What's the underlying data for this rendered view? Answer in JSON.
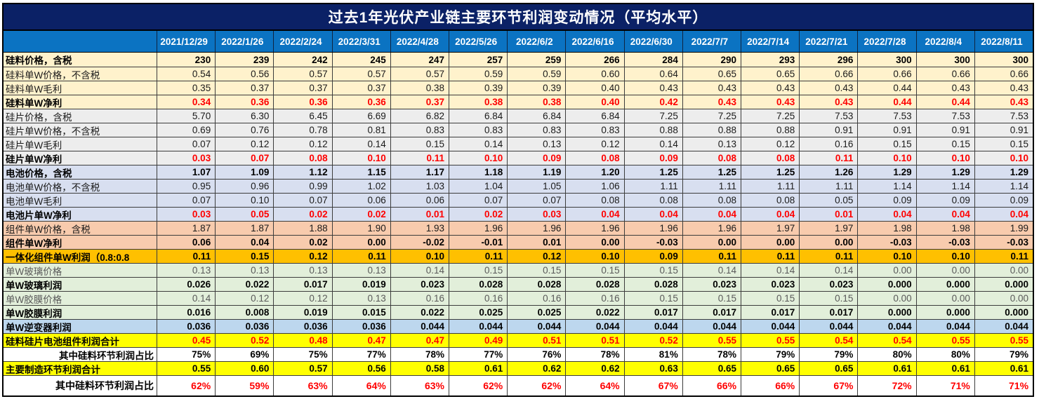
{
  "title": "过去1年光伏产业链主要环节利润变动情况（平均水平）",
  "palette": {
    "navy_titlebar": "#0B2166",
    "blue_header": "#0B73C2",
    "red_text": "#FF0000",
    "cream": "#FFF2CC",
    "wafer_gray": "#EDEDED",
    "battery_periwinkle": "#D8DFF0",
    "module_salmon": "#F8CBAD",
    "integrated_gold": "#FFC000",
    "glass_green": "#E2EFDA",
    "inverter_blue": "#BDD7EE",
    "total_yellow": "#FFFF00",
    "white": "#FFFFFF"
  },
  "chart_data": {
    "type": "table",
    "title": "过去1年光伏产业链主要环节利润变动情况（平均水平）",
    "columns": [
      "",
      "2021/12/29",
      "2022/1/26",
      "2022/2/24",
      "2022/3/31",
      "2022/4/28",
      "2022/5/26",
      "2022/6/2",
      "2022/6/16",
      "2022/6/30",
      "2022/7/7",
      "2022/7/14",
      "2022/7/21",
      "2022/7/28",
      "2022/8/4",
      "2022/8/11"
    ],
    "rows": [
      {
        "label": "硅料价格，含税",
        "bg": "cream",
        "label_style": "bold",
        "value_style": "bold",
        "values": [
          "230",
          "239",
          "242",
          "245",
          "247",
          "257",
          "259",
          "266",
          "284",
          "290",
          "293",
          "296",
          "300",
          "300",
          "300"
        ]
      },
      {
        "label": "硅料单W价格，不含税",
        "bg": "cream",
        "label_style": "normal",
        "value_style": "normal",
        "values": [
          "0.54",
          "0.56",
          "0.57",
          "0.57",
          "0.57",
          "0.59",
          "0.59",
          "0.60",
          "0.64",
          "0.65",
          "0.65",
          "0.66",
          "0.66",
          "0.66",
          "0.66"
        ]
      },
      {
        "label": "硅料单W毛利",
        "bg": "cream",
        "label_style": "normal",
        "value_style": "normal",
        "values": [
          "0.35",
          "0.37",
          "0.37",
          "0.37",
          "0.38",
          "0.39",
          "0.39",
          "0.40",
          "0.43",
          "0.43",
          "0.43",
          "0.43",
          "0.44",
          "0.43",
          "0.43"
        ]
      },
      {
        "label": "硅料单W净利",
        "bg": "cream",
        "label_style": "bold",
        "value_style": "bold-red",
        "values": [
          "0.34",
          "0.36",
          "0.36",
          "0.36",
          "0.37",
          "0.38",
          "0.38",
          "0.40",
          "0.42",
          "0.43",
          "0.43",
          "0.43",
          "0.44",
          "0.44",
          "0.43"
        ]
      },
      {
        "label": "硅片价格，含税",
        "bg": "wafer_gray",
        "label_style": "normal",
        "value_style": "normal",
        "values": [
          "5.70",
          "6.30",
          "6.45",
          "6.69",
          "6.82",
          "6.84",
          "6.84",
          "6.84",
          "7.25",
          "7.25",
          "7.25",
          "7.53",
          "7.53",
          "7.53",
          "7.53"
        ]
      },
      {
        "label": "硅片单W价格，不含税",
        "bg": "wafer_gray",
        "label_style": "normal",
        "value_style": "normal",
        "values": [
          "0.69",
          "0.76",
          "0.78",
          "0.81",
          "0.83",
          "0.83",
          "0.83",
          "0.83",
          "0.88",
          "0.88",
          "0.88",
          "0.91",
          "0.91",
          "0.91",
          "0.91"
        ]
      },
      {
        "label": "硅片单W毛利",
        "bg": "wafer_gray",
        "label_style": "normal",
        "value_style": "normal",
        "values": [
          "0.07",
          "0.12",
          "0.12",
          "0.14",
          "0.15",
          "0.14",
          "0.13",
          "0.12",
          "0.14",
          "0.13",
          "0.12",
          "0.16",
          "0.15",
          "0.15",
          "0.15"
        ]
      },
      {
        "label": "硅片单W净利",
        "bg": "wafer_gray",
        "label_style": "bold",
        "value_style": "bold-red",
        "values": [
          "0.03",
          "0.07",
          "0.08",
          "0.10",
          "0.11",
          "0.10",
          "0.09",
          "0.08",
          "0.09",
          "0.08",
          "0.08",
          "0.11",
          "0.10",
          "0.10",
          "0.10"
        ]
      },
      {
        "label": "电池价格，含税",
        "bg": "battery_periwinkle",
        "label_style": "bold",
        "value_style": "bold",
        "values": [
          "1.07",
          "1.09",
          "1.12",
          "1.15",
          "1.17",
          "1.18",
          "1.19",
          "1.20",
          "1.25",
          "1.25",
          "1.25",
          "1.26",
          "1.29",
          "1.29",
          "1.29"
        ]
      },
      {
        "label": "电池单W价格，不含税",
        "bg": "battery_periwinkle",
        "label_style": "normal",
        "value_style": "normal",
        "values": [
          "0.95",
          "0.96",
          "0.99",
          "1.02",
          "1.03",
          "1.04",
          "1.05",
          "1.06",
          "1.11",
          "1.11",
          "1.11",
          "1.11",
          "1.14",
          "1.14",
          "1.14"
        ]
      },
      {
        "label": "电池单W毛利",
        "bg": "battery_periwinkle",
        "label_style": "normal",
        "value_style": "normal",
        "values": [
          "0.07",
          "0.10",
          "0.07",
          "0.06",
          "0.06",
          "0.07",
          "0.07",
          "0.08",
          "0.08",
          "0.08",
          "0.08",
          "0.05",
          "0.09",
          "0.09",
          "0.09"
        ]
      },
      {
        "label": "电池片单W净利",
        "bg": "battery_periwinkle",
        "label_style": "bold",
        "value_style": "bold-red",
        "values": [
          "0.03",
          "0.05",
          "0.02",
          "0.02",
          "0.01",
          "0.02",
          "0.03",
          "0.04",
          "0.04",
          "0.04",
          "0.04",
          "0.01",
          "0.04",
          "0.04",
          "0.04"
        ]
      },
      {
        "label": "组件单W价格，含税",
        "bg": "module_salmon",
        "label_style": "normal",
        "value_style": "normal",
        "values": [
          "1.87",
          "1.87",
          "1.88",
          "1.90",
          "1.93",
          "1.96",
          "1.96",
          "1.96",
          "1.96",
          "1.96",
          "1.97",
          "1.97",
          "1.98",
          "1.98",
          "1.99"
        ]
      },
      {
        "label": "组件单W净利",
        "bg": "module_salmon",
        "label_style": "bold",
        "value_style": "bold",
        "values": [
          "0.06",
          "0.04",
          "0.02",
          "0.00",
          "-0.02",
          "-0.01",
          "0.01",
          "0.00",
          "-0.03",
          "0.00",
          "0.00",
          "0.00",
          "-0.03",
          "-0.03",
          "-0.03"
        ]
      },
      {
        "label": "一体化组件单W利润（0.8:0.8",
        "bg": "integrated_gold",
        "label_style": "bold",
        "value_style": "bold",
        "values": [
          "0.11",
          "0.15",
          "0.12",
          "0.11",
          "0.10",
          "0.11",
          "0.12",
          "0.10",
          "0.09",
          "0.11",
          "0.11",
          "0.11",
          "0.10",
          "0.10",
          "0.11"
        ]
      },
      {
        "label": "单W玻璃价格",
        "bg": "glass_green",
        "label_style": "gray",
        "value_style": "gray",
        "values": [
          "0.13",
          "0.13",
          "0.13",
          "0.13",
          "0.14",
          "0.15",
          "0.15",
          "0.15",
          "0.15",
          "0.14",
          "0.14",
          "0.14",
          "0.00",
          "0.00",
          "0.00"
        ]
      },
      {
        "label": "单W玻璃利润",
        "bg": "glass_green",
        "label_style": "bold",
        "value_style": "bold",
        "values": [
          "0.026",
          "0.022",
          "0.017",
          "0.019",
          "0.023",
          "0.028",
          "0.028",
          "0.028",
          "0.028",
          "0.023",
          "0.023",
          "0.023",
          "0.000",
          "0.000",
          "0.000"
        ]
      },
      {
        "label": "单W胶膜价格",
        "bg": "glass_green",
        "label_style": "gray",
        "value_style": "gray",
        "values": [
          "0.14",
          "0.12",
          "0.12",
          "0.13",
          "0.16",
          "0.16",
          "0.16",
          "0.16",
          "0.15",
          "0.15",
          "0.15",
          "0.15",
          "0.00",
          "0.00",
          "0.00"
        ]
      },
      {
        "label": "单W胶膜利润",
        "bg": "glass_green",
        "label_style": "bold",
        "value_style": "bold",
        "values": [
          "0.016",
          "0.008",
          "0.019",
          "0.015",
          "0.022",
          "0.025",
          "0.025",
          "0.022",
          "0.017",
          "0.017",
          "0.017",
          "0.017",
          "0.000",
          "0.000",
          "0.000"
        ]
      },
      {
        "label": "单W逆变器利润",
        "bg": "inverter_blue",
        "label_style": "bold",
        "value_style": "bold",
        "values": [
          "0.036",
          "0.036",
          "0.036",
          "0.036",
          "0.044",
          "0.044",
          "0.044",
          "0.044",
          "0.044",
          "0.044",
          "0.044",
          "0.044",
          "0.044",
          "0.044",
          "0.044"
        ]
      },
      {
        "label": "硅料硅片电池组件利润合计",
        "bg": "total_yellow",
        "label_style": "bold",
        "value_style": "bold-red",
        "values": [
          "0.45",
          "0.52",
          "0.48",
          "0.47",
          "0.47",
          "0.49",
          "0.51",
          "0.51",
          "0.52",
          "0.55",
          "0.55",
          "0.54",
          "0.54",
          "0.55",
          "0.55"
        ]
      },
      {
        "label": "其中硅料环节利润占比",
        "bg": "white",
        "label_style": "bold",
        "label_align": "right",
        "value_style": "bold",
        "values": [
          "75%",
          "69%",
          "75%",
          "77%",
          "78%",
          "77%",
          "76%",
          "78%",
          "81%",
          "78%",
          "79%",
          "79%",
          "80%",
          "80%",
          "79%"
        ]
      },
      {
        "label": "主要制造环节利润合计",
        "bg": "total_yellow",
        "label_style": "bold",
        "value_style": "bold",
        "values": [
          "0.55",
          "0.60",
          "0.57",
          "0.56",
          "0.58",
          "0.61",
          "0.62",
          "0.62",
          "0.63",
          "0.65",
          "0.65",
          "0.65",
          "0.61",
          "0.61",
          "0.61"
        ]
      },
      {
        "label": "其中硅料环节利润占比",
        "bg": "white",
        "label_style": "bold",
        "label_align": "right",
        "value_style": "bold-red",
        "tall": true,
        "values": [
          "62%",
          "59%",
          "63%",
          "64%",
          "63%",
          "62%",
          "62%",
          "64%",
          "67%",
          "66%",
          "66%",
          "67%",
          "72%",
          "71%",
          "71%"
        ]
      }
    ]
  }
}
